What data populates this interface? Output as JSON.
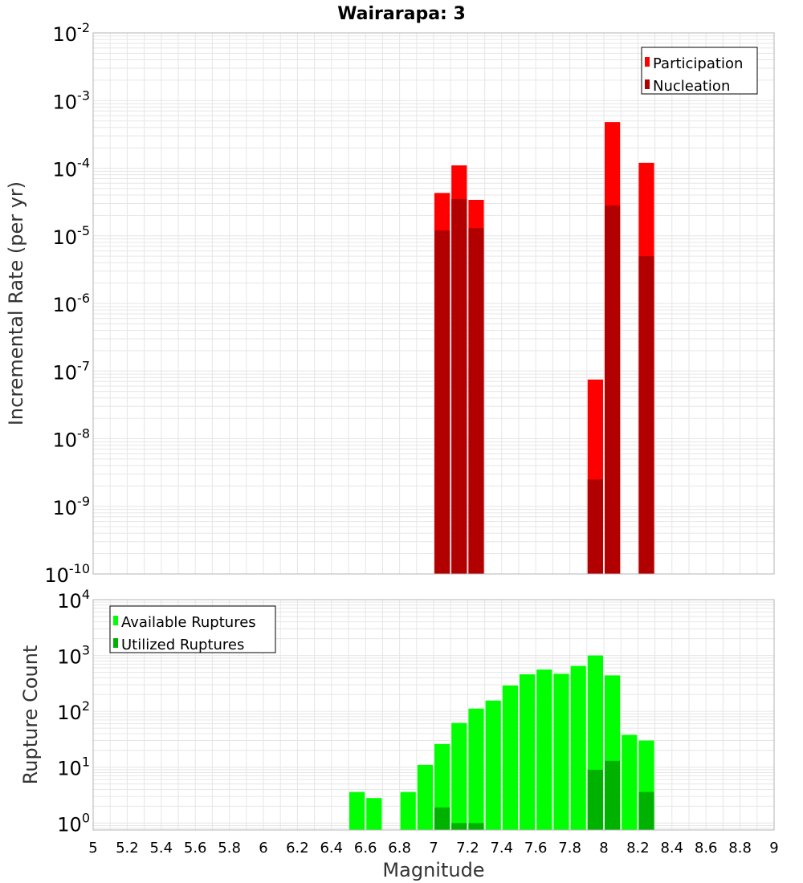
{
  "title": "Wairarapa: 3",
  "colors": {
    "participation": "#ff0000",
    "nucleation": "#b20000",
    "available": "#00ff00",
    "utilized": "#00b200",
    "grid": "#e6e6e6",
    "frame": "#b4b4b4"
  },
  "chart_data": [
    {
      "type": "bar",
      "scale": "log",
      "xlabel": "Magnitude",
      "ylabel": "Incremental Rate (per yr)",
      "xlim": [
        5,
        9
      ],
      "ylim": [
        1e-10,
        0.01
      ],
      "y_ticks": [
        {
          "base": "10",
          "exp": "-10"
        },
        {
          "base": "10",
          "exp": "-9"
        },
        {
          "base": "10",
          "exp": "-8"
        },
        {
          "base": "10",
          "exp": "-7"
        },
        {
          "base": "10",
          "exp": "-6"
        },
        {
          "base": "10",
          "exp": "-5"
        },
        {
          "base": "10",
          "exp": "-4"
        },
        {
          "base": "10",
          "exp": "-3"
        },
        {
          "base": "10",
          "exp": "-2"
        }
      ],
      "legend": {
        "position": "top-right",
        "entries": [
          "Participation",
          "Nucleation"
        ]
      },
      "grid": true,
      "series": [
        {
          "name": "Participation",
          "points": [
            {
              "x": 7.05,
              "y": 4.3e-05
            },
            {
              "x": 7.15,
              "y": 0.00011
            },
            {
              "x": 7.25,
              "y": 3.4e-05
            },
            {
              "x": 7.95,
              "y": 7.5e-08
            },
            {
              "x": 8.05,
              "y": 0.00048
            },
            {
              "x": 8.25,
              "y": 0.00012
            }
          ]
        },
        {
          "name": "Nucleation",
          "points": [
            {
              "x": 7.05,
              "y": 1.2e-05
            },
            {
              "x": 7.15,
              "y": 3.5e-05
            },
            {
              "x": 7.25,
              "y": 1.3e-05
            },
            {
              "x": 7.95,
              "y": 2.5e-09
            },
            {
              "x": 8.05,
              "y": 2.8e-05
            },
            {
              "x": 8.25,
              "y": 5e-06
            }
          ]
        }
      ]
    },
    {
      "type": "bar",
      "scale": "log",
      "xlabel": "Magnitude",
      "ylabel": "Rupture Count",
      "xlim": [
        5,
        9
      ],
      "ylim": [
        0.75,
        10000
      ],
      "x_ticks": [
        "5",
        "5.2",
        "5.4",
        "5.6",
        "5.8",
        "6",
        "6.2",
        "6.4",
        "6.6",
        "6.8",
        "7",
        "7.2",
        "7.4",
        "7.6",
        "7.8",
        "8",
        "8.2",
        "8.4",
        "8.6",
        "8.8",
        "9"
      ],
      "y_ticks": [
        {
          "base": "10",
          "exp": "0"
        },
        {
          "base": "10",
          "exp": "1"
        },
        {
          "base": "10",
          "exp": "2"
        },
        {
          "base": "10",
          "exp": "3"
        },
        {
          "base": "10",
          "exp": "4"
        }
      ],
      "legend": {
        "position": "top-left",
        "entries": [
          "Available Ruptures",
          "Utilized Ruptures"
        ]
      },
      "grid": true,
      "series": [
        {
          "name": "Available Ruptures",
          "points": [
            {
              "x": 6.55,
              "y": 3.6
            },
            {
              "x": 6.65,
              "y": 2.8
            },
            {
              "x": 6.85,
              "y": 3.6
            },
            {
              "x": 6.95,
              "y": 11
            },
            {
              "x": 7.05,
              "y": 26
            },
            {
              "x": 7.15,
              "y": 62
            },
            {
              "x": 7.25,
              "y": 112
            },
            {
              "x": 7.35,
              "y": 156
            },
            {
              "x": 7.45,
              "y": 290
            },
            {
              "x": 7.55,
              "y": 460
            },
            {
              "x": 7.65,
              "y": 560
            },
            {
              "x": 7.75,
              "y": 470
            },
            {
              "x": 7.85,
              "y": 650
            },
            {
              "x": 7.95,
              "y": 1000
            },
            {
              "x": 8.05,
              "y": 440
            },
            {
              "x": 8.15,
              "y": 38
            },
            {
              "x": 8.25,
              "y": 30
            }
          ]
        },
        {
          "name": "Utilized Ruptures",
          "points": [
            {
              "x": 7.05,
              "y": 1.9
            },
            {
              "x": 7.15,
              "y": 1
            },
            {
              "x": 7.25,
              "y": 1
            },
            {
              "x": 7.95,
              "y": 9
            },
            {
              "x": 8.05,
              "y": 13
            },
            {
              "x": 8.25,
              "y": 3.6
            }
          ]
        }
      ]
    }
  ]
}
